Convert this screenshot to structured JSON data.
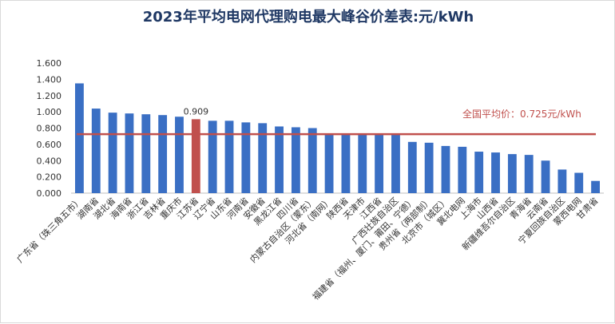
{
  "chart_data": {
    "type": "bar",
    "title": "2023年平均电网代理购电最大峰谷价差表:元/kWh",
    "xlabel": "",
    "ylabel": "",
    "ylim": [
      0,
      1.6
    ],
    "yticks": [
      "0.000",
      "0.200",
      "0.400",
      "0.600",
      "0.800",
      "1.000",
      "1.200",
      "1.400",
      "1.600"
    ],
    "grid": false,
    "categories": [
      "广东省（珠三角五市）",
      "湖南省",
      "湖北省",
      "海南省",
      "浙江省",
      "吉林省",
      "重庆市",
      "江苏省",
      "辽宁省",
      "山东省",
      "河南省",
      "安徽省",
      "黑龙江省",
      "四川省",
      "内蒙古自治区（蒙东）",
      "河北省（南网）",
      "陕西省",
      "天津市",
      "江西省",
      "广西壮族自治区",
      "福建省（福州、厦门、莆田、宁德）",
      "贵州省（两部制）",
      "北京市（城区）",
      "冀北电网",
      "上海市",
      "山西省",
      "新疆维吾尔自治区",
      "青海省",
      "云南省",
      "宁夏回族自治区",
      "蒙西电网",
      "甘肃省"
    ],
    "values": [
      1.35,
      1.04,
      0.99,
      0.98,
      0.97,
      0.96,
      0.94,
      0.909,
      0.89,
      0.89,
      0.87,
      0.86,
      0.82,
      0.81,
      0.8,
      0.73,
      0.73,
      0.73,
      0.72,
      0.72,
      0.63,
      0.62,
      0.58,
      0.57,
      0.51,
      0.5,
      0.48,
      0.47,
      0.4,
      0.29,
      0.25,
      0.15
    ],
    "data_labels": [
      {
        "category": "江苏省",
        "text": "0.909"
      }
    ],
    "highlight_category": "江苏省",
    "average": {
      "value": 0.725,
      "label": "全国平均价：0.725元/kWh"
    },
    "colors": {
      "bar": "#3a6fc4",
      "highlight": "#c0504d",
      "average_line": "#c0504d",
      "title": "#1f3864"
    }
  }
}
